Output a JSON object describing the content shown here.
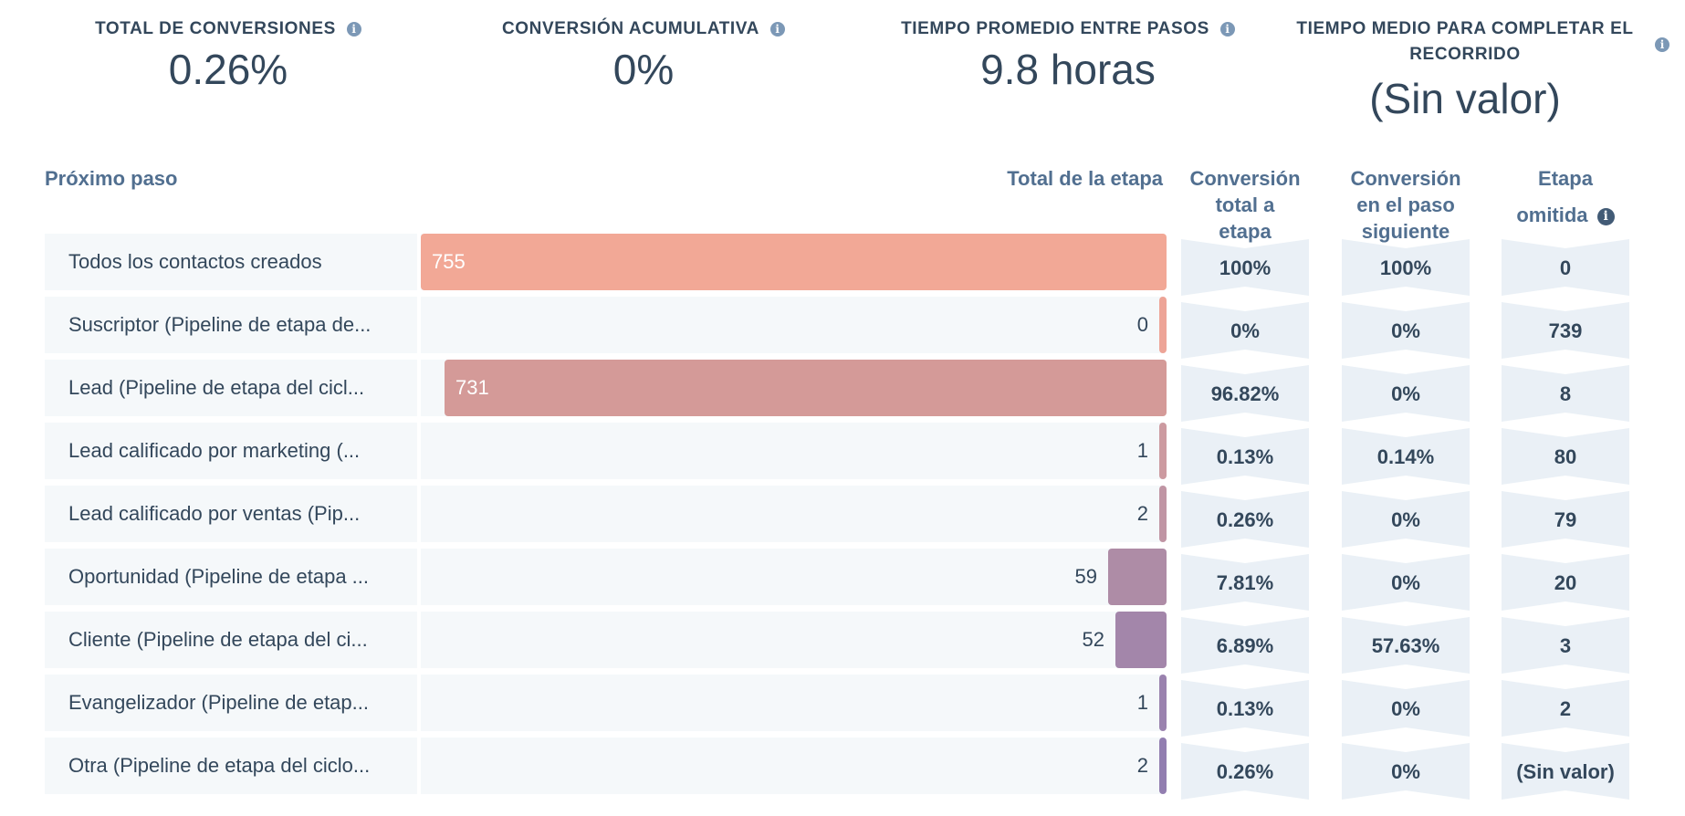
{
  "kpis": [
    {
      "label": "TOTAL DE CONVERSIONES",
      "value": "0.26%",
      "icon": "info-icon"
    },
    {
      "label": "CONVERSIÓN ACUMULATIVA",
      "value": "0%",
      "icon": "info-icon"
    },
    {
      "label": "TIEMPO PROMEDIO ENTRE PASOS",
      "value": "9.8 horas",
      "icon": "info-icon"
    },
    {
      "label_line1": "TIEMPO MEDIO PARA COMPLETAR EL",
      "label_line2": "RECORRIDO",
      "value": "(Sin valor)",
      "icon": "info-icon"
    }
  ],
  "table": {
    "headers": {
      "step": "Próximo paso",
      "stage_total": "Total de la etapa",
      "total_conversion": [
        "Conversión",
        "total a",
        "etapa"
      ],
      "next_conversion": [
        "Conversión",
        "en el paso",
        "siguiente"
      ],
      "skipped": [
        "Etapa",
        "omitida"
      ]
    },
    "rows": [
      {
        "label": "Todos los contactos creados",
        "total": "755",
        "total_num": 755,
        "color": "#f2a896",
        "conv_total": "100%",
        "conv_next": "100%",
        "skipped": "0"
      },
      {
        "label": "Suscriptor (Pipeline de etapa de...",
        "total": "0",
        "total_num": 0,
        "color": "#eda497",
        "conv_total": "0%",
        "conv_next": "0%",
        "skipped": "739"
      },
      {
        "label": "Lead (Pipeline de etapa del cicl...",
        "total": "731",
        "total_num": 731,
        "color": "#d49a98",
        "conv_total": "96.82%",
        "conv_next": "0%",
        "skipped": "8"
      },
      {
        "label": "Lead calificado por marketing (...",
        "total": "1",
        "total_num": 1,
        "color": "#cc9aa0",
        "conv_total": "0.13%",
        "conv_next": "0.14%",
        "skipped": "80"
      },
      {
        "label": "Lead calificado por ventas (Pip...",
        "total": "2",
        "total_num": 2,
        "color": "#c095a4",
        "conv_total": "0.26%",
        "conv_next": "0%",
        "skipped": "79"
      },
      {
        "label": "Oportunidad (Pipeline de etapa ...",
        "total": "59",
        "total_num": 59,
        "color": "#ae8ca6",
        "conv_total": "7.81%",
        "conv_next": "0%",
        "skipped": "20"
      },
      {
        "label": "Cliente (Pipeline de etapa del ci...",
        "total": "52",
        "total_num": 52,
        "color": "#a386aa",
        "conv_total": "6.89%",
        "conv_next": "57.63%",
        "skipped": "3"
      },
      {
        "label": "Evangelizador (Pipeline de etap...",
        "total": "1",
        "total_num": 1,
        "color": "#9a82ae",
        "conv_total": "0.13%",
        "conv_next": "0%",
        "skipped": "2"
      },
      {
        "label": "Otra (Pipeline de etapa del ciclo...",
        "total": "2",
        "total_num": 2,
        "color": "#927eb0",
        "conv_total": "0.26%",
        "conv_next": "0%",
        "skipped": "(Sin valor)"
      }
    ]
  }
}
